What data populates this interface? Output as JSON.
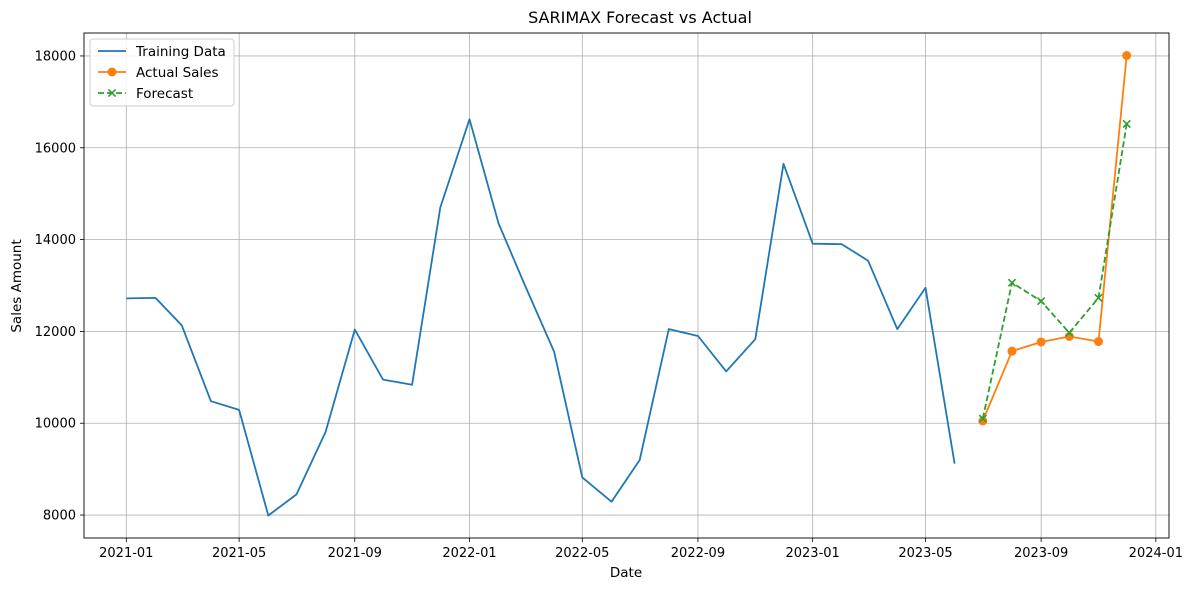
{
  "chart_data": {
    "type": "line",
    "title": "SARIMAX Forecast vs Actual",
    "xlabel": "Date",
    "ylabel": "Sales Amount",
    "xlim": [
      "2020-11-17",
      "2024-01-15"
    ],
    "ylim": [
      7500,
      18500
    ],
    "grid": true,
    "legend_position": "top-left",
    "x_ticks": [
      "2021-01",
      "2021-05",
      "2021-09",
      "2022-01",
      "2022-05",
      "2022-09",
      "2023-01",
      "2023-05",
      "2023-09",
      "2024-01"
    ],
    "y_ticks": [
      8000,
      10000,
      12000,
      14000,
      16000,
      18000
    ],
    "series": [
      {
        "name": "Training Data",
        "color": "#1f77b4",
        "style": "solid",
        "marker": "none",
        "x": [
          "2021-01-01",
          "2021-02-01",
          "2021-03-01",
          "2021-04-01",
          "2021-05-01",
          "2021-06-01",
          "2021-07-01",
          "2021-08-01",
          "2021-09-01",
          "2021-10-01",
          "2021-11-01",
          "2021-12-01",
          "2022-01-01",
          "2022-02-01",
          "2022-03-01",
          "2022-04-01",
          "2022-05-01",
          "2022-06-01",
          "2022-07-01",
          "2022-08-01",
          "2022-09-01",
          "2022-10-01",
          "2022-11-01",
          "2022-12-01",
          "2023-01-01",
          "2023-02-01",
          "2023-03-01",
          "2023-04-01",
          "2023-05-01",
          "2023-06-01"
        ],
        "values": [
          12720,
          12730,
          12130,
          10480,
          10290,
          7990,
          8450,
          9810,
          12040,
          10950,
          10840,
          14700,
          16620,
          14350,
          13000,
          11560,
          8820,
          8290,
          9200,
          12050,
          11900,
          11130,
          11830,
          15650,
          13910,
          13900,
          13540,
          12050,
          12950,
          9120
        ]
      },
      {
        "name": "Actual Sales",
        "color": "#ff7f0e",
        "style": "solid",
        "marker": "circle",
        "x": [
          "2023-07-01",
          "2023-08-01",
          "2023-09-01",
          "2023-10-01",
          "2023-11-01",
          "2023-12-01"
        ],
        "values": [
          10050,
          11570,
          11770,
          11890,
          11780,
          18010
        ]
      },
      {
        "name": "Forecast",
        "color": "#2ca02c",
        "style": "dashed",
        "marker": "x",
        "x": [
          "2023-07-01",
          "2023-08-01",
          "2023-09-01",
          "2023-10-01",
          "2023-11-01",
          "2023-12-01"
        ],
        "values": [
          10100,
          13060,
          12660,
          11970,
          12730,
          16520
        ]
      }
    ]
  }
}
